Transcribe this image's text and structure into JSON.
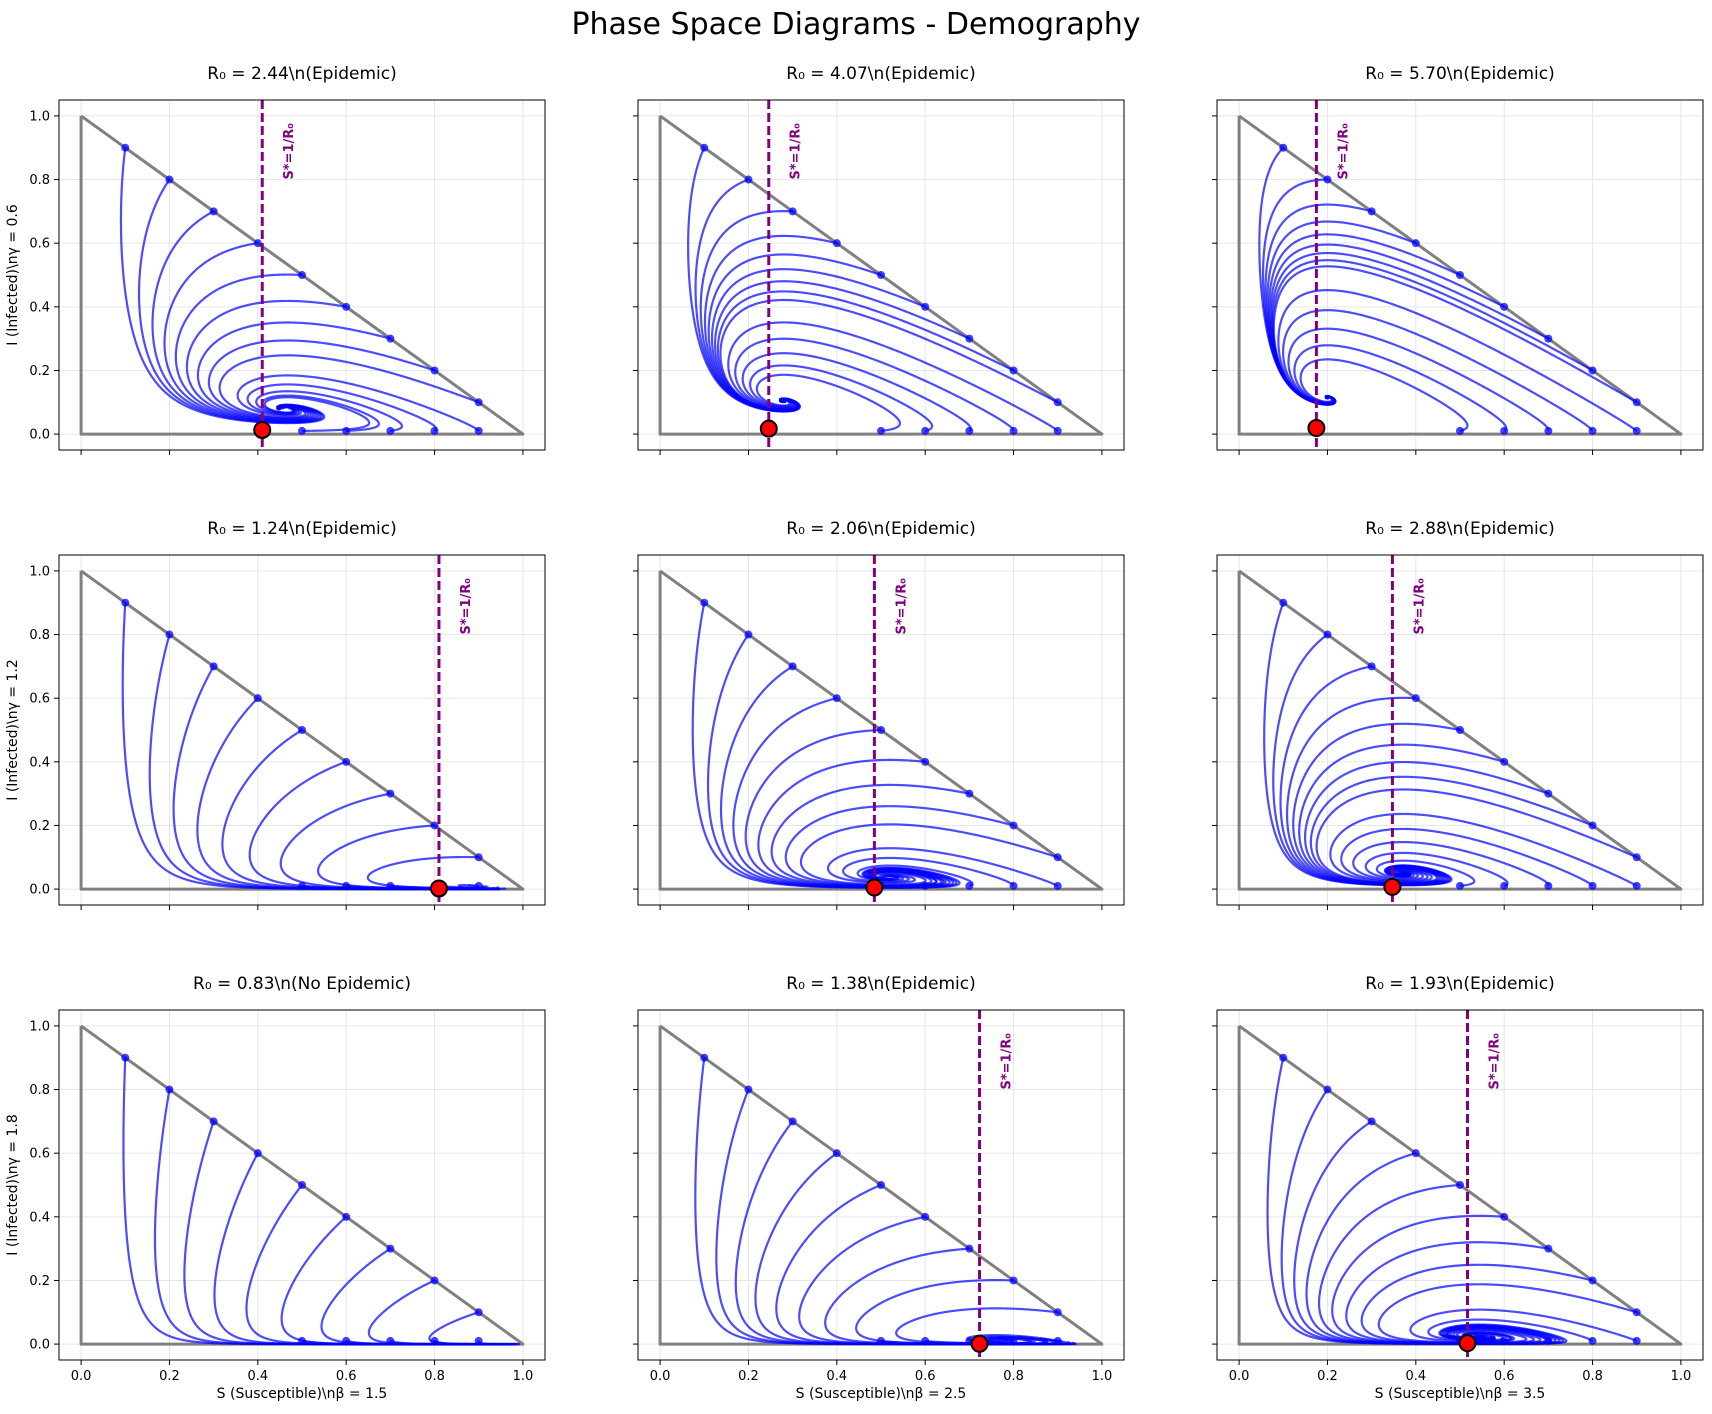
{
  "figure": {
    "title": "Phase Space Diagrams - Demography"
  },
  "colors": {
    "boundary": "#808080",
    "trajectory": "#0000ff",
    "threshold": "#800080",
    "equilibrium_fill": "#ff0000",
    "equilibrium_edge": "#000000",
    "grid": "#e6e6e6"
  },
  "chart_data": {
    "type": "line",
    "xlim": [
      -0.05,
      1.05
    ],
    "ylim": [
      -0.05,
      1.05
    ],
    "xticks": [
      "0.0",
      "0.2",
      "0.4",
      "0.6",
      "0.8",
      "1.0"
    ],
    "yticks": [
      "0.0",
      "0.2",
      "0.4",
      "0.6",
      "0.8",
      "1.0"
    ],
    "grid": true,
    "boundary": "triangle S + I = 1 with axes S = 0 and I = 0",
    "threshold_label": "S*=1/R₀",
    "column_xlabels": [
      "S (Susceptible)\\nβ = 1.5",
      "S (Susceptible)\\nβ = 2.5",
      "S (Susceptible)\\nβ = 3.5"
    ],
    "row_ylabels": [
      "I (Infected)\\nγ = 0.6",
      "I (Infected)\\nγ = 1.2",
      "I (Infected)\\nγ = 1.8"
    ],
    "initial_conditions": {
      "on_hypotenuse_S": [
        0.1,
        0.2,
        0.3,
        0.4,
        0.5,
        0.6,
        0.7,
        0.8,
        0.9
      ],
      "on_S_axis_S": [
        0.5,
        0.6,
        0.7,
        0.8,
        0.9
      ],
      "on_S_axis_I": 0.01
    },
    "panels": [
      {
        "title": "R₀ = 2.44\\n(Epidemic)",
        "beta": 1.5,
        "gamma": 0.6,
        "R0": 2.44,
        "threshold": 0.41,
        "equilibrium": [
          0.41,
          0.013
        ]
      },
      {
        "title": "R₀ = 4.07\\n(Epidemic)",
        "beta": 2.5,
        "gamma": 0.6,
        "R0": 4.07,
        "threshold": 0.246,
        "equilibrium": [
          0.246,
          0.017
        ]
      },
      {
        "title": "R₀ = 5.70\\n(Epidemic)",
        "beta": 3.5,
        "gamma": 0.6,
        "R0": 5.7,
        "threshold": 0.175,
        "equilibrium": [
          0.175,
          0.019
        ]
      },
      {
        "title": "R₀ = 1.24\\n(Epidemic)",
        "beta": 1.5,
        "gamma": 1.2,
        "R0": 1.24,
        "threshold": 0.81,
        "equilibrium": [
          0.81,
          0.002
        ]
      },
      {
        "title": "R₀ = 2.06\\n(Epidemic)",
        "beta": 2.5,
        "gamma": 1.2,
        "R0": 2.06,
        "threshold": 0.485,
        "equilibrium": [
          0.485,
          0.005
        ]
      },
      {
        "title": "R₀ = 2.88\\n(Epidemic)",
        "beta": 3.5,
        "gamma": 1.2,
        "R0": 2.88,
        "threshold": 0.347,
        "equilibrium": [
          0.347,
          0.007
        ]
      },
      {
        "title": "R₀ = 0.83\\n(No Epidemic)",
        "beta": 1.5,
        "gamma": 1.8,
        "R0": 0.83,
        "threshold": null,
        "equilibrium": null
      },
      {
        "title": "R₀ = 1.38\\n(Epidemic)",
        "beta": 2.5,
        "gamma": 1.8,
        "R0": 1.38,
        "threshold": 0.723,
        "equilibrium": [
          0.723,
          0.001
        ]
      },
      {
        "title": "R₀ = 1.93\\n(Epidemic)",
        "beta": 3.5,
        "gamma": 1.8,
        "R0": 1.93,
        "threshold": 0.517,
        "equilibrium": [
          0.517,
          0.003
        ]
      }
    ]
  }
}
